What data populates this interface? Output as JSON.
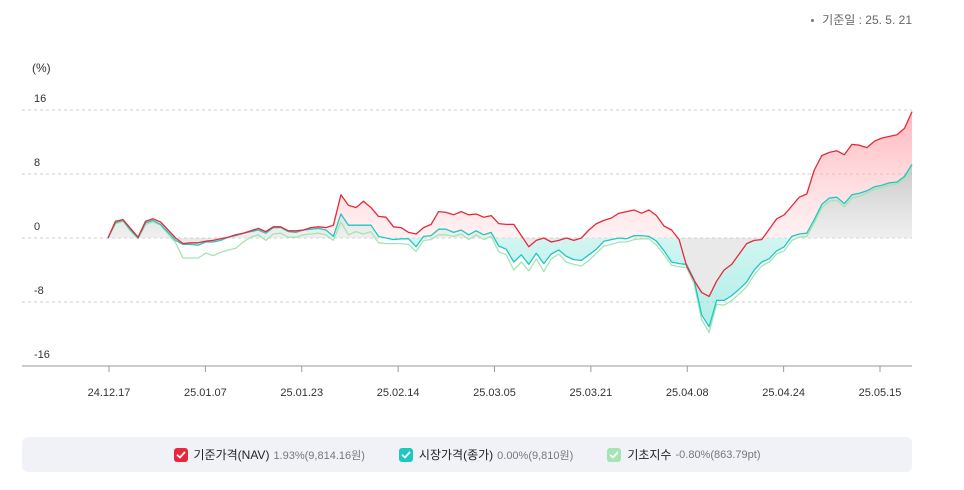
{
  "header": {
    "base_date": "기준일 : 25. 5. 21"
  },
  "legend": [
    {
      "name": "기준가격(NAV)",
      "value": "1.93%(9,814.16원)",
      "color": "#e8283a"
    },
    {
      "name": "시장가격(종가)",
      "value": "0.00%(9,810원)",
      "color": "#1ec8c0"
    },
    {
      "name": "기초지수",
      "value": "-0.80%(863.79pt)",
      "color": "#a5e4b3"
    }
  ],
  "chart_data": {
    "type": "line",
    "ylabel": "(%)",
    "ylim": [
      -16,
      16
    ],
    "yticks": [
      "16",
      "8",
      "0",
      "-8",
      "-16"
    ],
    "xticks": [
      "24.12.17",
      "25.01.07",
      "25.01.23",
      "25.02.14",
      "25.03.05",
      "25.03.21",
      "25.04.08",
      "25.04.24",
      "25.05.15"
    ],
    "n_points": 108,
    "series": [
      {
        "name": "기준가격(NAV)",
        "color": "#e8283a",
        "values": [
          0.0,
          2.1,
          2.3,
          1.2,
          0.1,
          2.1,
          2.4,
          2.0,
          1.0,
          0.0,
          -0.7,
          -0.6,
          -0.6,
          -0.4,
          -0.3,
          -0.1,
          0.1,
          0.4,
          0.6,
          0.9,
          1.2,
          0.8,
          1.4,
          1.4,
          0.9,
          0.9,
          1.0,
          1.3,
          1.4,
          1.3,
          1.6,
          5.4,
          4.1,
          3.8,
          4.6,
          3.8,
          2.7,
          2.6,
          1.4,
          1.3,
          0.7,
          0.5,
          1.3,
          1.7,
          3.3,
          3.2,
          2.9,
          3.3,
          2.9,
          3.0,
          2.6,
          2.8,
          1.8,
          1.7,
          1.7,
          0.3,
          -1.1,
          -0.3,
          0.0,
          -0.5,
          -0.3,
          0.0,
          -0.3,
          0.0,
          1.0,
          1.8,
          2.2,
          2.5,
          3.1,
          3.3,
          3.5,
          3.1,
          3.5,
          2.8,
          1.5,
          1.0,
          -0.2,
          -3.5,
          -5.3,
          -6.8,
          -7.3,
          -5.4,
          -4.0,
          -3.3,
          -2.0,
          -0.7,
          -0.3,
          -0.2,
          1.1,
          2.4,
          2.9,
          4.0,
          5.1,
          5.5,
          8.5,
          10.3,
          10.7,
          10.9,
          10.4,
          11.7,
          11.6,
          11.3,
          12.1,
          12.5,
          12.7,
          12.9,
          13.7,
          15.8
        ]
      },
      {
        "name": "시장가격(종가)",
        "color": "#1ec8c0",
        "values": [
          0.0,
          1.9,
          2.2,
          1.0,
          0.0,
          1.9,
          2.2,
          1.7,
          0.7,
          -0.3,
          -0.8,
          -0.8,
          -0.9,
          -0.5,
          -0.5,
          -0.3,
          0.1,
          0.3,
          0.6,
          0.8,
          1.0,
          0.6,
          1.3,
          1.3,
          0.8,
          0.7,
          1.0,
          1.1,
          1.2,
          1.0,
          0.2,
          3.0,
          1.6,
          1.6,
          1.6,
          1.6,
          0.2,
          0.0,
          -0.2,
          -0.1,
          -0.1,
          -1.1,
          0.2,
          0.3,
          1.1,
          1.1,
          0.7,
          1.0,
          0.4,
          0.9,
          0.4,
          0.7,
          -1.0,
          -1.4,
          -3.0,
          -2.1,
          -3.3,
          -1.9,
          -3.2,
          -2.0,
          -1.5,
          -2.3,
          -2.7,
          -2.8,
          -2.1,
          -1.4,
          -0.4,
          -0.2,
          0.0,
          -0.1,
          0.3,
          0.3,
          0.2,
          -0.4,
          -1.6,
          -3.0,
          -3.2,
          -3.3,
          -5.2,
          -9.6,
          -11.1,
          -7.8,
          -7.8,
          -7.2,
          -6.4,
          -5.5,
          -4.0,
          -3.0,
          -2.6,
          -1.6,
          -1.1,
          0.2,
          0.5,
          0.6,
          2.3,
          4.2,
          5.0,
          5.1,
          4.3,
          5.4,
          5.6,
          5.9,
          6.4,
          6.6,
          6.9,
          7.0,
          7.7,
          9.2
        ]
      },
      {
        "name": "기초지수",
        "color": "#a5e4b3",
        "values": [
          0.0,
          1.8,
          2.1,
          0.9,
          -0.1,
          1.7,
          2.0,
          1.6,
          0.5,
          -0.6,
          -2.5,
          -2.5,
          -2.5,
          -1.9,
          -2.2,
          -1.8,
          -1.5,
          -1.3,
          -0.5,
          0.1,
          0.4,
          -0.3,
          0.5,
          0.6,
          0.1,
          0.1,
          0.4,
          0.5,
          0.6,
          0.4,
          -0.3,
          2.0,
          0.4,
          0.8,
          0.5,
          0.8,
          -0.6,
          -0.7,
          -0.7,
          -0.7,
          -0.8,
          -1.7,
          -0.3,
          -0.2,
          0.4,
          0.4,
          0.2,
          0.5,
          -0.2,
          0.4,
          -0.2,
          0.2,
          -1.7,
          -2.1,
          -4.0,
          -3.0,
          -4.1,
          -2.6,
          -4.2,
          -2.6,
          -2.0,
          -3.0,
          -3.3,
          -3.5,
          -2.8,
          -1.9,
          -1.0,
          -0.8,
          -0.5,
          -0.5,
          -0.2,
          -0.1,
          -0.1,
          -0.9,
          -2.1,
          -3.4,
          -3.6,
          -3.7,
          -5.7,
          -10.2,
          -11.8,
          -8.3,
          -8.4,
          -7.8,
          -7.0,
          -6.1,
          -4.6,
          -3.5,
          -3.0,
          -2.0,
          -1.6,
          -0.3,
          0.1,
          0.2,
          1.9,
          3.8,
          4.6,
          4.7,
          3.9,
          5.0,
          5.2,
          5.6,
          6.1,
          6.3,
          6.6,
          6.8,
          7.4,
          9.0
        ]
      }
    ]
  }
}
